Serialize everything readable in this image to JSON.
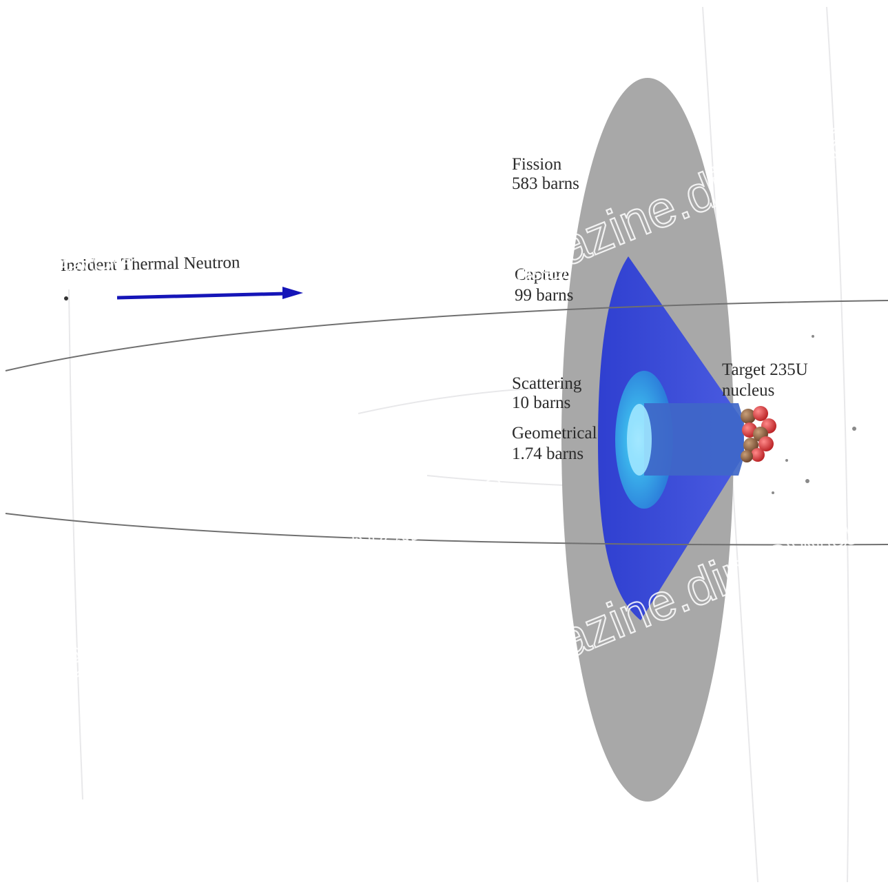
{
  "incident": {
    "label": "Incident Thermal Neutron"
  },
  "cross_sections": [
    {
      "name": "Fission",
      "value": "583 barns"
    },
    {
      "name": "Capture",
      "value": "99 barns"
    },
    {
      "name": "Scattering",
      "value": "10 barns"
    },
    {
      "name": "Geometrical",
      "value": "1.74 barns"
    }
  ],
  "target": {
    "line1": "Target 235U",
    "line2": "nucleus"
  },
  "watermark": {
    "text": "magazine.dimowa.com"
  },
  "colors": {
    "fission_disc": "#a7a7a7",
    "capture_disc": "#3f52d8",
    "scattering_disc": "#2c8fe0",
    "geometric_disc": "#3d63c9",
    "neutron_arrow": "#1515b8",
    "nucleus_proton": "#d8383a",
    "nucleus_neutron": "#8a5a3a"
  }
}
